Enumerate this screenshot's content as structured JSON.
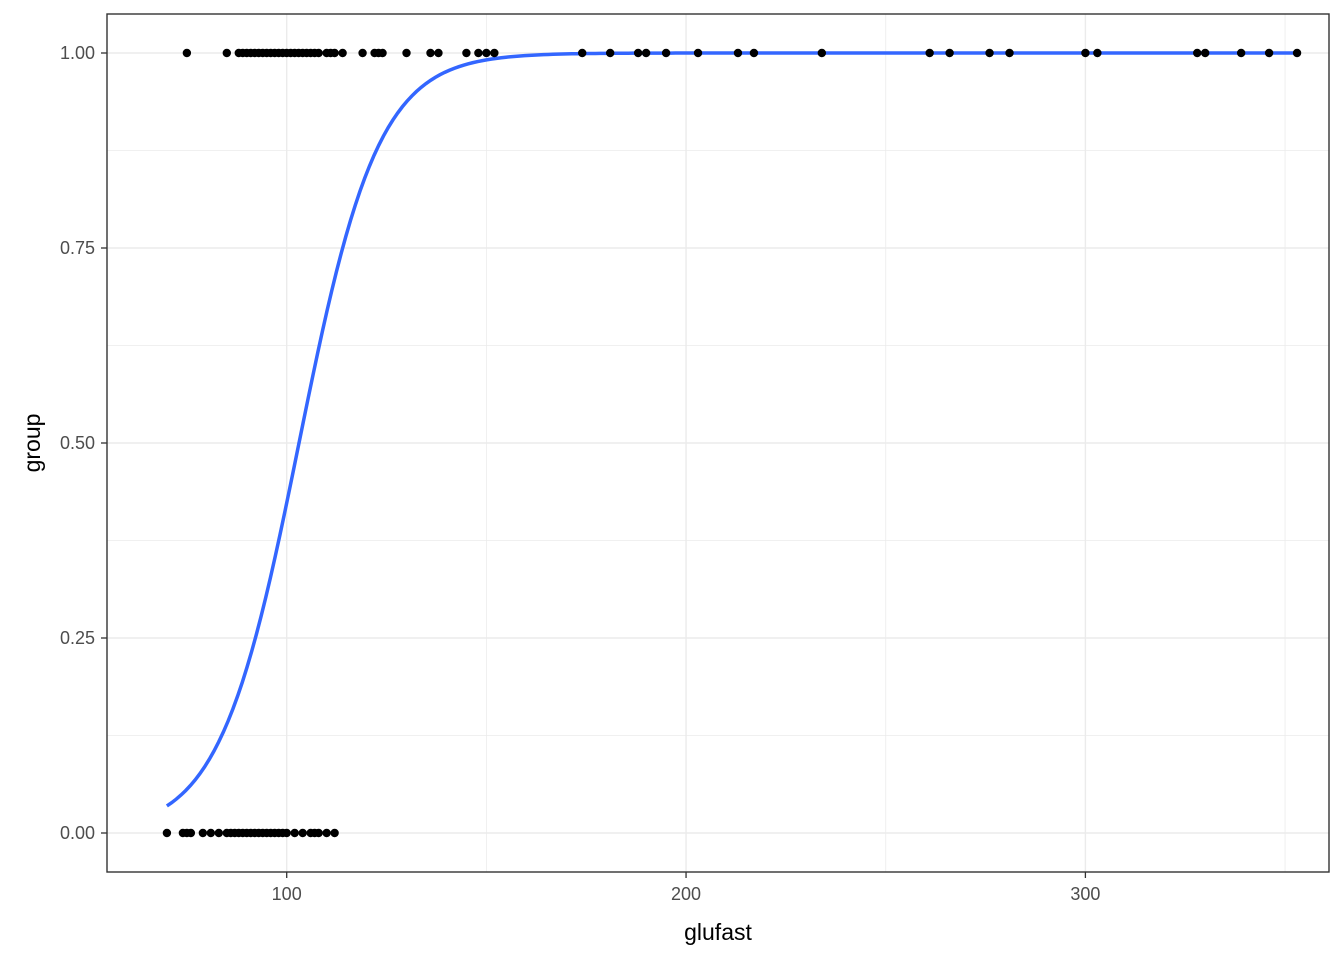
{
  "chart_data": {
    "type": "scatter",
    "title": "",
    "xlabel": "glufast",
    "ylabel": "group",
    "xlim": [
      55,
      361
    ],
    "ylim": [
      -0.05,
      1.05
    ],
    "x_ticks": [
      100,
      200,
      300
    ],
    "x_tick_labels": [
      "100",
      "200",
      "300"
    ],
    "y_ticks": [
      0,
      0.25,
      0.5,
      0.75,
      1
    ],
    "y_tick_labels": [
      "0.00",
      "0.25",
      "0.50",
      "0.75",
      "1.00"
    ],
    "grid": true,
    "points": {
      "group_1_x": [
        75,
        85,
        88,
        89,
        90,
        91,
        92,
        93,
        94,
        95,
        96,
        97,
        98,
        99,
        100,
        101,
        102,
        103,
        104,
        105,
        106,
        107,
        108,
        110,
        111,
        112,
        114,
        119,
        122,
        123,
        124,
        130,
        136,
        138,
        145,
        148,
        150,
        152,
        174,
        181,
        188,
        190,
        195,
        203,
        213,
        217,
        234,
        261,
        266,
        276,
        281,
        300,
        303,
        328,
        330,
        339,
        346,
        353
      ],
      "group_0_x": [
        70,
        74,
        75,
        76,
        79,
        81,
        83,
        85,
        86,
        87,
        88,
        89,
        90,
        91,
        92,
        93,
        94,
        95,
        96,
        97,
        98,
        99,
        100,
        102,
        104,
        106,
        107,
        108,
        110,
        112
      ]
    },
    "curve": {
      "name": "",
      "model": "logistic",
      "intercept": -10.37,
      "slope": 0.1006,
      "x_range": [
        70,
        353
      ]
    },
    "colors": {
      "points": "#000000",
      "curve": "#3366FF",
      "grid": "#EBEBEB",
      "panel_border": "#333333",
      "tick_text": "#4D4D4D",
      "title_text": "#000000"
    }
  }
}
